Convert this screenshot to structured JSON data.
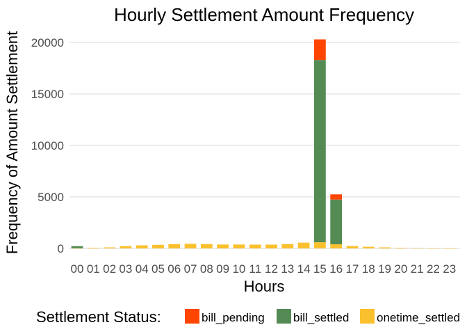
{
  "chart_data": {
    "type": "bar",
    "stacked": true,
    "title": "Hourly Settlement Amount Frequency",
    "xlabel": "Hours",
    "ylabel": "Frequency of Amount Settlement",
    "ylim": [
      0,
      21500
    ],
    "yticks": [
      0,
      5000,
      10000,
      15000,
      20000
    ],
    "grid": "horizontal",
    "legend_position": "bottom",
    "legend_title": "Settlement Status:",
    "categories": [
      "00",
      "01",
      "02",
      "03",
      "04",
      "05",
      "06",
      "07",
      "08",
      "09",
      "10",
      "11",
      "12",
      "13",
      "14",
      "15",
      "16",
      "17",
      "18",
      "19",
      "20",
      "21",
      "22",
      "23"
    ],
    "series": [
      {
        "name": "onetime_settled",
        "color": "#FBC02D",
        "values": [
          20,
          60,
          100,
          220,
          300,
          350,
          420,
          450,
          420,
          380,
          380,
          370,
          370,
          420,
          560,
          600,
          400,
          230,
          160,
          100,
          60,
          20,
          10,
          5
        ]
      },
      {
        "name": "bill_settled",
        "color": "#548B54",
        "values": [
          200,
          0,
          0,
          0,
          0,
          0,
          0,
          0,
          0,
          0,
          0,
          0,
          0,
          0,
          0,
          17700,
          4350,
          0,
          0,
          0,
          0,
          0,
          0,
          0
        ]
      },
      {
        "name": "bill_pending",
        "color": "#FF4500",
        "values": [
          0,
          0,
          0,
          0,
          0,
          0,
          0,
          0,
          0,
          0,
          0,
          0,
          0,
          0,
          0,
          2000,
          500,
          0,
          0,
          0,
          0,
          0,
          0,
          0
        ]
      }
    ],
    "legend_order": [
      "bill_pending",
      "bill_settled",
      "onetime_settled"
    ]
  }
}
